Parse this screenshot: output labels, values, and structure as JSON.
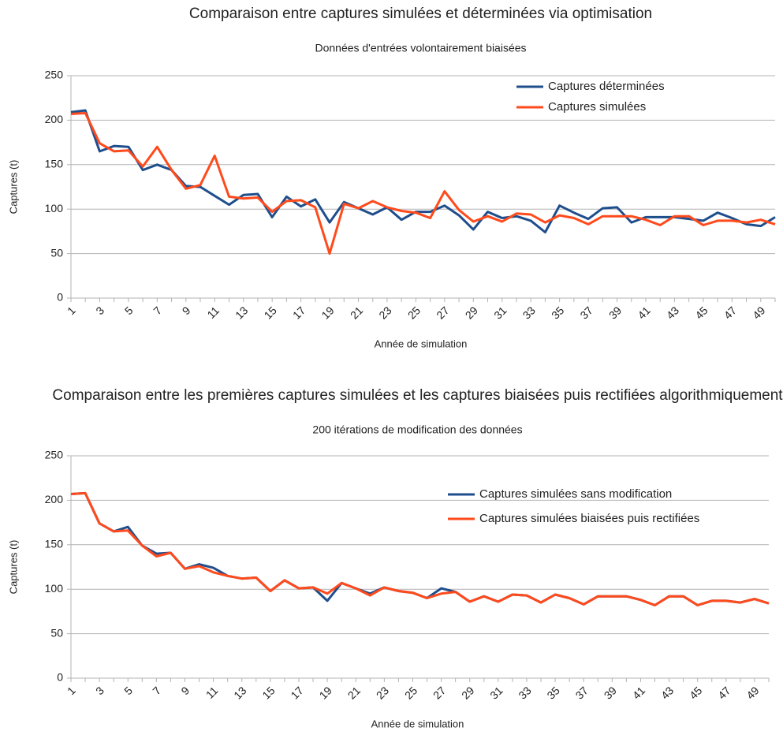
{
  "chart_data": [
    {
      "type": "line",
      "title": "Comparaison entre captures simulées et déterminées via optimisation",
      "subtitle": "Données d'entrées volontairement biaisées",
      "x_label": "Année de simulation",
      "y_label": "Captures (t)",
      "categories": [
        1,
        null,
        3,
        null,
        5,
        null,
        7,
        null,
        9,
        null,
        11,
        null,
        13,
        null,
        15,
        null,
        17,
        null,
        19,
        null,
        21,
        null,
        23,
        null,
        25,
        null,
        27,
        null,
        29,
        null,
        31,
        null,
        33,
        null,
        35,
        null,
        37,
        null,
        39,
        null,
        41,
        null,
        43,
        null,
        45,
        null,
        47,
        null,
        49,
        null
      ],
      "ylim": [
        0,
        250
      ],
      "yticks": [
        0,
        50,
        100,
        150,
        200,
        250
      ],
      "grid": true,
      "legend": "top-right",
      "series": [
        {
          "name": "Captures déterminées",
          "color": "#1f4e8c",
          "values": [
            209,
            211,
            165,
            171,
            170,
            144,
            150,
            144,
            126,
            125,
            115,
            105,
            116,
            117,
            91,
            114,
            103,
            111,
            85,
            108,
            101,
            94,
            102,
            88,
            97,
            97,
            104,
            93,
            77,
            97,
            90,
            92,
            87,
            74,
            104,
            96,
            89,
            101,
            102,
            85,
            91,
            91,
            91,
            89,
            87,
            96,
            90,
            83,
            81,
            91
          ]
        },
        {
          "name": "Captures simulées",
          "color": "#ff4a1c",
          "values": [
            207,
            208,
            174,
            165,
            166,
            148,
            170,
            144,
            123,
            127,
            160,
            114,
            112,
            113,
            97,
            109,
            110,
            102,
            50,
            106,
            101,
            109,
            102,
            98,
            96,
            90,
            120,
            99,
            86,
            92,
            86,
            95,
            94,
            85,
            93,
            90,
            83,
            92,
            92,
            92,
            88,
            82,
            92,
            92,
            82,
            87,
            87,
            85,
            88,
            83
          ]
        }
      ]
    },
    {
      "type": "line",
      "title": "Comparaison entre les premières captures simulées et les captures biaisées puis rectifiées algorithmiquement",
      "subtitle": "200 itérations de modification des données",
      "x_label": "Année de simulation",
      "y_label": "Captures (t)",
      "categories": [
        1,
        null,
        3,
        null,
        5,
        null,
        7,
        null,
        9,
        null,
        11,
        null,
        13,
        null,
        15,
        null,
        17,
        null,
        19,
        null,
        21,
        null,
        23,
        null,
        25,
        null,
        27,
        null,
        29,
        null,
        31,
        null,
        33,
        null,
        35,
        null,
        37,
        null,
        39,
        null,
        41,
        null,
        43,
        null,
        45,
        null,
        47,
        null,
        49,
        null
      ],
      "ylim": [
        0,
        250
      ],
      "yticks": [
        0,
        50,
        100,
        150,
        200,
        250
      ],
      "grid": true,
      "legend": "top-right",
      "series": [
        {
          "name": "Captures simulées sans modification",
          "color": "#1f4e8c",
          "values": [
            207,
            208,
            174,
            165,
            170,
            149,
            140,
            141,
            123,
            128,
            124,
            115,
            112,
            113,
            98,
            110,
            101,
            102,
            87,
            107,
            101,
            95,
            102,
            98,
            96,
            90,
            101,
            97,
            86,
            92,
            86,
            94,
            93,
            85,
            94,
            90,
            83,
            92,
            92,
            92,
            88,
            82,
            92,
            92,
            82,
            87,
            87,
            85,
            89,
            84
          ]
        },
        {
          "name": "Captures simulées biaisées puis rectifiées",
          "color": "#ff4a1c",
          "values": [
            207,
            208,
            174,
            165,
            166,
            149,
            137,
            141,
            123,
            126,
            119,
            115,
            112,
            113,
            98,
            110,
            101,
            102,
            95,
            107,
            101,
            93,
            102,
            98,
            96,
            90,
            95,
            97,
            86,
            92,
            86,
            94,
            93,
            85,
            94,
            90,
            83,
            92,
            92,
            92,
            88,
            82,
            92,
            92,
            82,
            87,
            87,
            85,
            89,
            84
          ]
        }
      ]
    }
  ]
}
